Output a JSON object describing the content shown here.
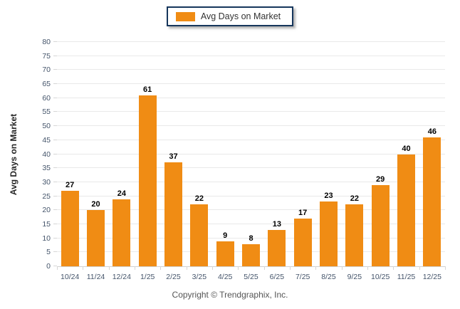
{
  "legend": {
    "label": "Avg Days on Market"
  },
  "chart_data": {
    "type": "bar",
    "title": "",
    "categories": [
      "10/24",
      "11/24",
      "12/24",
      "1/25",
      "2/25",
      "3/25",
      "4/25",
      "5/25",
      "6/25",
      "7/25",
      "8/25",
      "9/25",
      "10/25",
      "11/25",
      "12/25"
    ],
    "values": [
      27,
      20,
      24,
      61,
      37,
      22,
      9,
      8,
      13,
      17,
      23,
      22,
      29,
      40,
      46
    ],
    "xlabel": "",
    "ylabel": "Avg Days on Market",
    "ylim": [
      0,
      80
    ],
    "ytick_step": 5,
    "grid": "horizontal",
    "legend_position": "top-center",
    "bar_color": "#f08c14",
    "value_label_color": "#000000",
    "axis_label_color": "#44546a",
    "legend_border_color": "#16365c"
  },
  "footer": {
    "copyright": "Copyright © Trendgraphix, Inc."
  }
}
